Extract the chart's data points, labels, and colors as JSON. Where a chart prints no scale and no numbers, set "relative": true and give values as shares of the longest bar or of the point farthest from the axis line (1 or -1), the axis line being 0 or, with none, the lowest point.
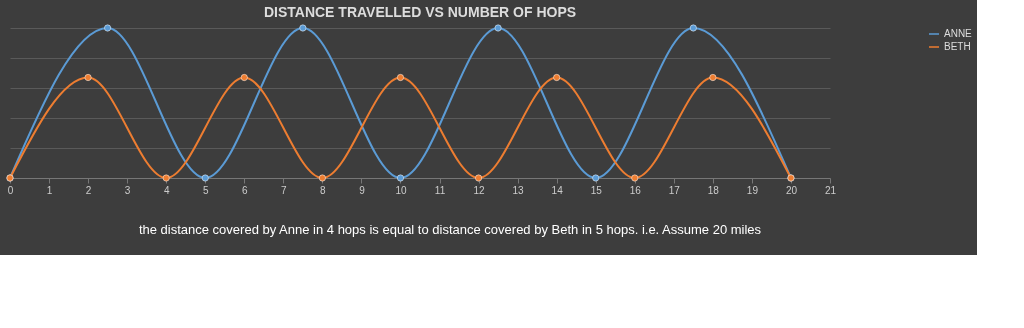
{
  "chart_data": {
    "type": "line",
    "title": "DISTANCE TRAVELLED VS NUMBER OF HOPS",
    "relative": true,
    "xlim": [
      0,
      21
    ],
    "xticks": [
      0,
      1,
      2,
      3,
      4,
      5,
      6,
      7,
      8,
      9,
      10,
      11,
      12,
      13,
      14,
      15,
      16,
      17,
      18,
      19,
      20,
      21
    ],
    "series": [
      {
        "name": "ANNE",
        "color": "#5b9bd5",
        "x": [
          0,
          2.5,
          5,
          7.5,
          10,
          12.5,
          15,
          17.5,
          20
        ],
        "values": [
          0,
          1,
          0,
          1,
          0,
          1,
          0,
          1,
          0
        ]
      },
      {
        "name": "BETH",
        "color": "#ed7d31",
        "x": [
          0,
          2,
          4,
          6,
          8,
          10,
          12,
          14,
          16,
          18,
          20
        ],
        "values": [
          0,
          0.67,
          0,
          0.67,
          0,
          0.67,
          0,
          0.67,
          0,
          0.67,
          0
        ]
      }
    ],
    "grid": "y",
    "legend": "right",
    "marker": "circle",
    "line_style": "solid",
    "annotations": [
      "the distance covered by Anne in 4 hops is equal to distance covered by Beth in 5 hops. i.e. Assume 20 miles"
    ]
  }
}
